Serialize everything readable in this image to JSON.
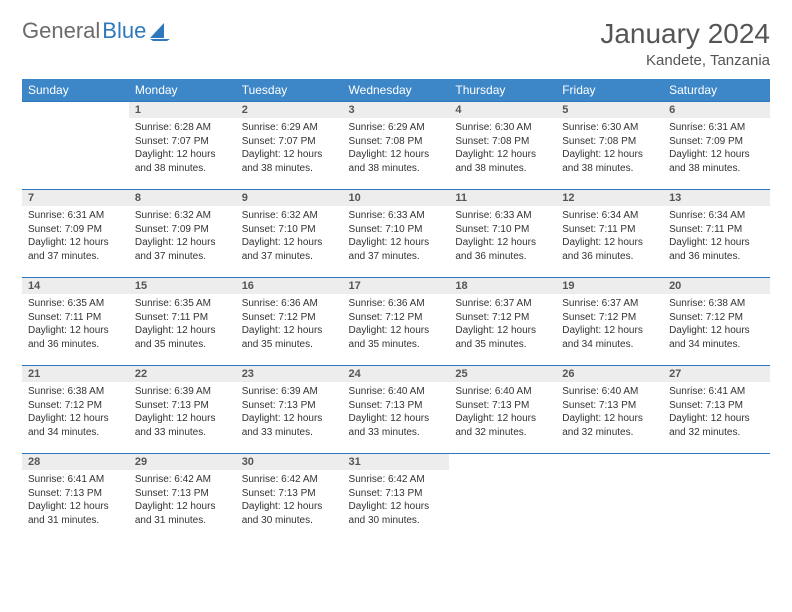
{
  "logo": {
    "part1": "General",
    "part2": "Blue"
  },
  "header": {
    "title": "January 2024",
    "location": "Kandete, Tanzania"
  },
  "colors": {
    "header_bg": "#3d87c9",
    "rule": "#2e78bd",
    "daynum_bg": "#ededed",
    "text": "#333333",
    "logo_gray": "#6b6b6b",
    "logo_blue": "#2e78bd",
    "title": "#555555"
  },
  "weekday_labels": [
    "Sunday",
    "Monday",
    "Tuesday",
    "Wednesday",
    "Thursday",
    "Friday",
    "Saturday"
  ],
  "start_offset": 1,
  "days": [
    {
      "n": "1",
      "sr": "6:28 AM",
      "ss": "7:07 PM",
      "dl": "12 hours and 38 minutes."
    },
    {
      "n": "2",
      "sr": "6:29 AM",
      "ss": "7:07 PM",
      "dl": "12 hours and 38 minutes."
    },
    {
      "n": "3",
      "sr": "6:29 AM",
      "ss": "7:08 PM",
      "dl": "12 hours and 38 minutes."
    },
    {
      "n": "4",
      "sr": "6:30 AM",
      "ss": "7:08 PM",
      "dl": "12 hours and 38 minutes."
    },
    {
      "n": "5",
      "sr": "6:30 AM",
      "ss": "7:08 PM",
      "dl": "12 hours and 38 minutes."
    },
    {
      "n": "6",
      "sr": "6:31 AM",
      "ss": "7:09 PM",
      "dl": "12 hours and 38 minutes."
    },
    {
      "n": "7",
      "sr": "6:31 AM",
      "ss": "7:09 PM",
      "dl": "12 hours and 37 minutes."
    },
    {
      "n": "8",
      "sr": "6:32 AM",
      "ss": "7:09 PM",
      "dl": "12 hours and 37 minutes."
    },
    {
      "n": "9",
      "sr": "6:32 AM",
      "ss": "7:10 PM",
      "dl": "12 hours and 37 minutes."
    },
    {
      "n": "10",
      "sr": "6:33 AM",
      "ss": "7:10 PM",
      "dl": "12 hours and 37 minutes."
    },
    {
      "n": "11",
      "sr": "6:33 AM",
      "ss": "7:10 PM",
      "dl": "12 hours and 36 minutes."
    },
    {
      "n": "12",
      "sr": "6:34 AM",
      "ss": "7:11 PM",
      "dl": "12 hours and 36 minutes."
    },
    {
      "n": "13",
      "sr": "6:34 AM",
      "ss": "7:11 PM",
      "dl": "12 hours and 36 minutes."
    },
    {
      "n": "14",
      "sr": "6:35 AM",
      "ss": "7:11 PM",
      "dl": "12 hours and 36 minutes."
    },
    {
      "n": "15",
      "sr": "6:35 AM",
      "ss": "7:11 PM",
      "dl": "12 hours and 35 minutes."
    },
    {
      "n": "16",
      "sr": "6:36 AM",
      "ss": "7:12 PM",
      "dl": "12 hours and 35 minutes."
    },
    {
      "n": "17",
      "sr": "6:36 AM",
      "ss": "7:12 PM",
      "dl": "12 hours and 35 minutes."
    },
    {
      "n": "18",
      "sr": "6:37 AM",
      "ss": "7:12 PM",
      "dl": "12 hours and 35 minutes."
    },
    {
      "n": "19",
      "sr": "6:37 AM",
      "ss": "7:12 PM",
      "dl": "12 hours and 34 minutes."
    },
    {
      "n": "20",
      "sr": "6:38 AM",
      "ss": "7:12 PM",
      "dl": "12 hours and 34 minutes."
    },
    {
      "n": "21",
      "sr": "6:38 AM",
      "ss": "7:12 PM",
      "dl": "12 hours and 34 minutes."
    },
    {
      "n": "22",
      "sr": "6:39 AM",
      "ss": "7:13 PM",
      "dl": "12 hours and 33 minutes."
    },
    {
      "n": "23",
      "sr": "6:39 AM",
      "ss": "7:13 PM",
      "dl": "12 hours and 33 minutes."
    },
    {
      "n": "24",
      "sr": "6:40 AM",
      "ss": "7:13 PM",
      "dl": "12 hours and 33 minutes."
    },
    {
      "n": "25",
      "sr": "6:40 AM",
      "ss": "7:13 PM",
      "dl": "12 hours and 32 minutes."
    },
    {
      "n": "26",
      "sr": "6:40 AM",
      "ss": "7:13 PM",
      "dl": "12 hours and 32 minutes."
    },
    {
      "n": "27",
      "sr": "6:41 AM",
      "ss": "7:13 PM",
      "dl": "12 hours and 32 minutes."
    },
    {
      "n": "28",
      "sr": "6:41 AM",
      "ss": "7:13 PM",
      "dl": "12 hours and 31 minutes."
    },
    {
      "n": "29",
      "sr": "6:42 AM",
      "ss": "7:13 PM",
      "dl": "12 hours and 31 minutes."
    },
    {
      "n": "30",
      "sr": "6:42 AM",
      "ss": "7:13 PM",
      "dl": "12 hours and 30 minutes."
    },
    {
      "n": "31",
      "sr": "6:42 AM",
      "ss": "7:13 PM",
      "dl": "12 hours and 30 minutes."
    }
  ],
  "labels": {
    "sunrise": "Sunrise:",
    "sunset": "Sunset:",
    "daylight": "Daylight:"
  }
}
